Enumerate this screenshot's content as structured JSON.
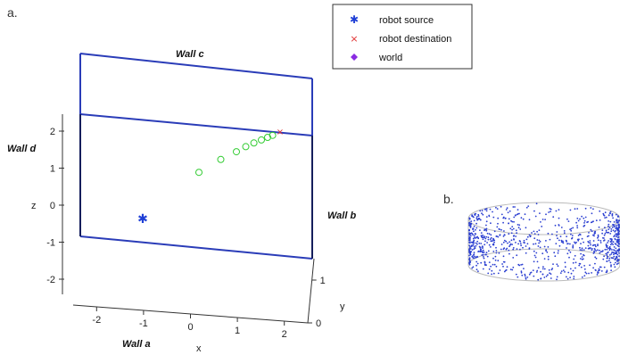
{
  "panels": {
    "a": "a.",
    "b": "b."
  },
  "walls": {
    "a": "Wall a",
    "b": "Wall b",
    "c": "Wall c",
    "d": "Wall d"
  },
  "legend": [
    {
      "label": "robot source",
      "marker": "*",
      "color": "#1f3fd6"
    },
    {
      "label": "robot destination",
      "marker": "x",
      "color": "#e03030"
    },
    {
      "label": "world",
      "marker": "diamond",
      "color": "#8a2be2"
    }
  ],
  "chart_data": [
    {
      "type": "scatter",
      "panel": "a",
      "xlabel": "x",
      "ylabel": "y",
      "zlabel": "z",
      "x_ticks": [
        "-2",
        "-1",
        "0",
        "1",
        "2"
      ],
      "y_ticks": [
        "0",
        "1"
      ],
      "z_ticks": [
        "-2",
        "-1",
        "0",
        "1",
        "2"
      ],
      "xlim": [
        -2.5,
        2.5
      ],
      "ylim": [
        0,
        1.5
      ],
      "zlim": [
        -2.5,
        2.5
      ],
      "colors": {
        "wall_c": "#1f3a8f",
        "wall_b": "#1e7a1e",
        "wall_d": "#a0461a",
        "floor": "#8a2be2",
        "path": "#33cc33",
        "source": "#1f3fd6",
        "destination": "#e03030",
        "frame": "#2a3cb8"
      },
      "source": {
        "x": -0.7,
        "y": 0.8,
        "z": -0.4
      },
      "destination": {
        "x": 1.5,
        "y": 0.8,
        "z": 1.3
      },
      "path": [
        {
          "x": 0.2,
          "y": 0.8,
          "z": 0.5
        },
        {
          "x": 0.55,
          "y": 0.8,
          "z": 0.75
        },
        {
          "x": 0.8,
          "y": 0.8,
          "z": 0.9
        },
        {
          "x": 0.95,
          "y": 0.8,
          "z": 1.0
        },
        {
          "x": 1.08,
          "y": 0.8,
          "z": 1.07
        },
        {
          "x": 1.2,
          "y": 0.8,
          "z": 1.13
        },
        {
          "x": 1.3,
          "y": 0.8,
          "z": 1.18
        },
        {
          "x": 1.38,
          "y": 0.8,
          "z": 1.22
        }
      ],
      "grid": false
    },
    {
      "type": "scatter",
      "panel": "b",
      "shape": "cylindrical ring band of points",
      "color": "#2b3fd1"
    }
  ]
}
